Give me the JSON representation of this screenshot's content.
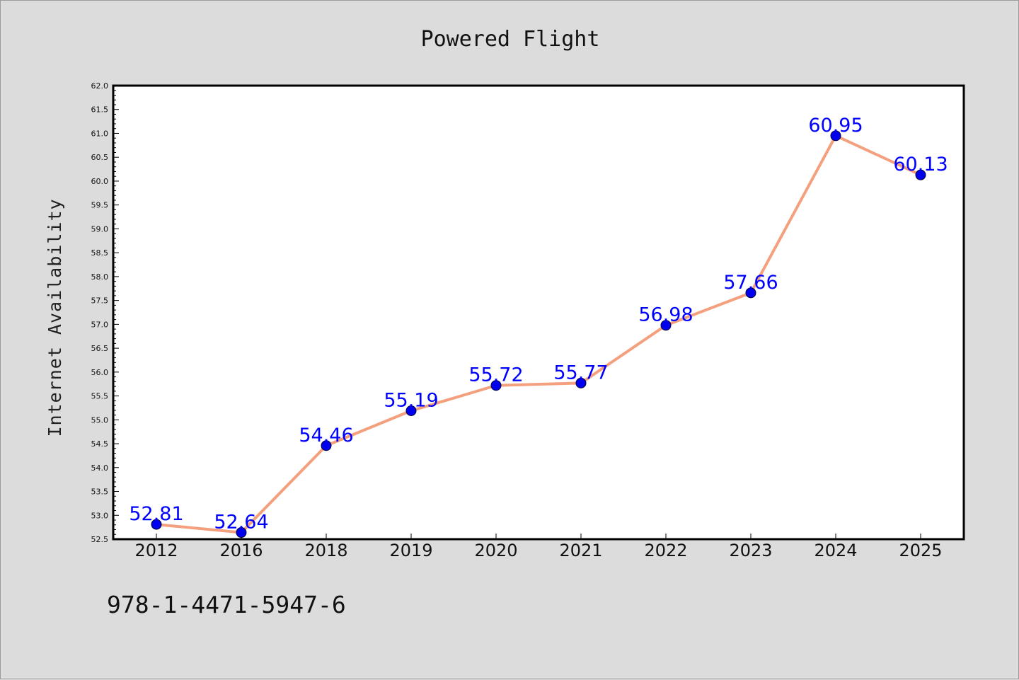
{
  "chart_data": {
    "type": "line",
    "title": "Powered Flight",
    "xlabel": "",
    "ylabel": "Internet Availability",
    "categories": [
      "2012",
      "2016",
      "2018",
      "2019",
      "2020",
      "2021",
      "2022",
      "2023",
      "2024",
      "2025"
    ],
    "series": [
      {
        "values": [
          52.81,
          52.64,
          54.46,
          55.19,
          55.72,
          55.77,
          56.98,
          57.66,
          60.95,
          60.13
        ],
        "labels": [
          "52.81",
          "52.64",
          "54.46",
          "55.19",
          "55.72",
          "55.77",
          "56.98",
          "57.66",
          "60.95",
          "60.13"
        ],
        "line_color": "#f4a07e",
        "marker_color": "#0000ee"
      }
    ],
    "ylim": [
      52.5,
      62.0
    ],
    "yticks": [
      "52.5",
      "53.0",
      "53.5",
      "54.0",
      "54.5",
      "55.0",
      "55.5",
      "56.0",
      "56.5",
      "57.0",
      "57.5",
      "58.0",
      "58.5",
      "59.0",
      "59.5",
      "60.0",
      "60.5",
      "61.0",
      "61.5",
      "62.0"
    ],
    "grid": false,
    "data_label_color": "#0000ff"
  },
  "caption": "978-1-4471-5947-6"
}
